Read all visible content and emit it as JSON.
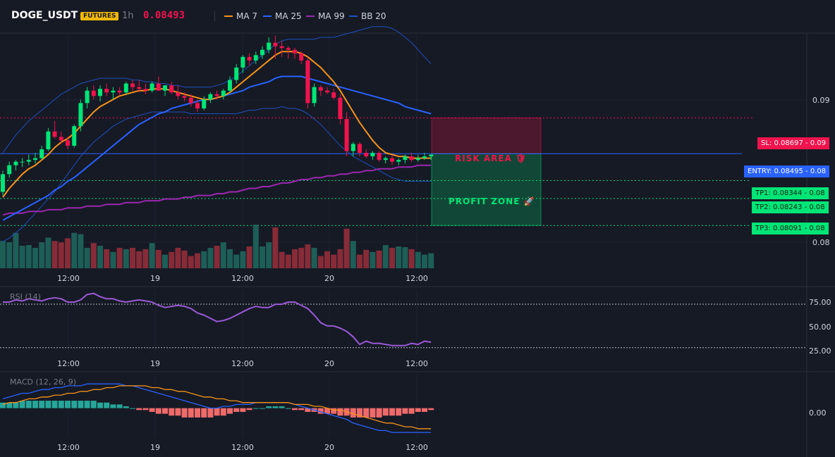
{
  "header": {
    "symbol": "DOGE_USDT",
    "badge": "FUTURES",
    "interval": "1h",
    "price": "0.08493",
    "legend": [
      {
        "label": "MA 7",
        "color": "#f7931a"
      },
      {
        "label": "MA 25",
        "color": "#2962ff"
      },
      {
        "label": "MA 99",
        "color": "#9c27b0"
      },
      {
        "label": "BB 20",
        "color": "#1e4fbf"
      }
    ]
  },
  "trade": {
    "risk_label": "RISK AREA 🛡",
    "profit_label": "PROFIT ZONE 🚀",
    "sl_tag": "SL: 0.08697 - 0.09",
    "entry_tag": "ENTRY: 0.08495 - 0.08",
    "tp1_tag": "TP1: 0.08344 - 0.08",
    "tp2_tag": "TP2: 0.08243 - 0.08",
    "tp3_tag": "TP3: 0.08091 - 0.08"
  },
  "colors": {
    "up": "#26a69a",
    "up_bright": "#00e676",
    "down": "#f0134d",
    "entry": "#2962ff"
  },
  "rsi": {
    "label": "RSI (14)",
    "ticks": [
      "75.00",
      "50.00",
      "25.00"
    ]
  },
  "macd": {
    "label": "MACD (12, 26, 9)",
    "ticks": [
      "0.00"
    ]
  },
  "chart_data": [
    {
      "type": "candlestick",
      "title": "DOGE_USDT",
      "x_ticks": [
        "12:00",
        "19",
        "12:00",
        "20",
        "12:00"
      ],
      "y_ticks": [
        "0.09",
        "0.08"
      ],
      "ylim": [
        0.0785,
        0.0917
      ],
      "levels": {
        "sl": 0.08697,
        "entry": 0.08495,
        "tp1": 0.08344,
        "tp2": 0.08243,
        "tp3": 0.08091
      },
      "ohlc": [
        [
          0.0828,
          0.084,
          0.0826,
          0.0838
        ],
        [
          0.0838,
          0.0845,
          0.0836,
          0.0843
        ],
        [
          0.0843,
          0.0846,
          0.084,
          0.0845
        ],
        [
          0.0845,
          0.0847,
          0.0842,
          0.0845
        ],
        [
          0.0845,
          0.0849,
          0.0843,
          0.0846
        ],
        [
          0.0846,
          0.085,
          0.0844,
          0.0847
        ],
        [
          0.0847,
          0.0854,
          0.0846,
          0.0852
        ],
        [
          0.0852,
          0.0864,
          0.0851,
          0.0862
        ],
        [
          0.0862,
          0.0868,
          0.0858,
          0.0859
        ],
        [
          0.0859,
          0.0862,
          0.0855,
          0.0857
        ],
        [
          0.0857,
          0.0859,
          0.0852,
          0.0854
        ],
        [
          0.0854,
          0.0866,
          0.0853,
          0.0865
        ],
        [
          0.0865,
          0.088,
          0.0862,
          0.0878
        ],
        [
          0.0878,
          0.0887,
          0.0875,
          0.0885
        ],
        [
          0.0885,
          0.0888,
          0.088,
          0.0882
        ],
        [
          0.0882,
          0.0888,
          0.0879,
          0.0886
        ],
        [
          0.0886,
          0.0889,
          0.0882,
          0.0884
        ],
        [
          0.0884,
          0.0887,
          0.088,
          0.0885
        ],
        [
          0.0885,
          0.0887,
          0.0882,
          0.0884
        ],
        [
          0.0884,
          0.089,
          0.0883,
          0.0889
        ],
        [
          0.0889,
          0.0891,
          0.0885,
          0.0887
        ],
        [
          0.0887,
          0.0891,
          0.0884,
          0.0886
        ],
        [
          0.0886,
          0.0889,
          0.0883,
          0.0885
        ],
        [
          0.0885,
          0.089,
          0.0884,
          0.0889
        ],
        [
          0.0889,
          0.0893,
          0.0885,
          0.0885
        ],
        [
          0.0885,
          0.0888,
          0.0882,
          0.0888
        ],
        [
          0.0888,
          0.089,
          0.0883,
          0.0884
        ],
        [
          0.0884,
          0.0888,
          0.088,
          0.0882
        ],
        [
          0.0882,
          0.0884,
          0.0879,
          0.0881
        ],
        [
          0.0881,
          0.0883,
          0.0876,
          0.0878
        ],
        [
          0.0878,
          0.088,
          0.0873,
          0.0875
        ],
        [
          0.0875,
          0.0882,
          0.0874,
          0.088
        ],
        [
          0.088,
          0.0884,
          0.0878,
          0.0883
        ],
        [
          0.0883,
          0.0885,
          0.088,
          0.0882
        ],
        [
          0.0882,
          0.0886,
          0.088,
          0.0885
        ],
        [
          0.0885,
          0.0893,
          0.0884,
          0.0891
        ],
        [
          0.0891,
          0.09,
          0.0889,
          0.0898
        ],
        [
          0.0898,
          0.0905,
          0.0895,
          0.0904
        ],
        [
          0.0904,
          0.0906,
          0.0899,
          0.0902
        ],
        [
          0.0902,
          0.0907,
          0.09,
          0.0905
        ],
        [
          0.0905,
          0.091,
          0.0903,
          0.0908
        ],
        [
          0.0908,
          0.0915,
          0.0906,
          0.0912
        ],
        [
          0.0912,
          0.0916,
          0.0903,
          0.091
        ],
        [
          0.091,
          0.0913,
          0.0904,
          0.0909
        ],
        [
          0.0909,
          0.091,
          0.0903,
          0.0908
        ],
        [
          0.0908,
          0.0909,
          0.0903,
          0.0906
        ],
        [
          0.0906,
          0.0907,
          0.09,
          0.0902
        ],
        [
          0.0902,
          0.0904,
          0.0875,
          0.0878
        ],
        [
          0.0878,
          0.0889,
          0.0876,
          0.0887
        ],
        [
          0.0887,
          0.0888,
          0.0882,
          0.0885
        ],
        [
          0.0885,
          0.0887,
          0.0883,
          0.0884
        ],
        [
          0.0884,
          0.0886,
          0.088,
          0.0881
        ],
        [
          0.0881,
          0.0883,
          0.0866,
          0.0869
        ],
        [
          0.0869,
          0.0873,
          0.0848,
          0.0851
        ],
        [
          0.0851,
          0.0856,
          0.0848,
          0.0855
        ],
        [
          0.0855,
          0.0856,
          0.0848,
          0.085
        ],
        [
          0.085,
          0.0852,
          0.0847,
          0.0848
        ],
        [
          0.0848,
          0.0851,
          0.0846,
          0.085
        ],
        [
          0.085,
          0.0851,
          0.0845,
          0.0846
        ],
        [
          0.0846,
          0.0848,
          0.0844,
          0.0847
        ],
        [
          0.0847,
          0.0849,
          0.0843,
          0.0845
        ],
        [
          0.0845,
          0.0847,
          0.0843,
          0.0846
        ],
        [
          0.0846,
          0.0849,
          0.0844,
          0.0848
        ],
        [
          0.0848,
          0.085,
          0.0845,
          0.0846
        ],
        [
          0.0846,
          0.0849,
          0.0845,
          0.0847
        ],
        [
          0.0847,
          0.085,
          0.0846,
          0.0848
        ],
        [
          0.0848,
          0.0849,
          0.0846,
          0.0849
        ]
      ],
      "volume": [
        40,
        38,
        52,
        33,
        34,
        30,
        38,
        45,
        40,
        38,
        44,
        52,
        50,
        30,
        37,
        33,
        28,
        24,
        30,
        28,
        30,
        25,
        28,
        37,
        27,
        20,
        24,
        30,
        26,
        18,
        22,
        25,
        30,
        33,
        38,
        28,
        20,
        25,
        32,
        64,
        32,
        38,
        60,
        24,
        20,
        28,
        30,
        35,
        30,
        18,
        25,
        20,
        28,
        58,
        40,
        20,
        27,
        24,
        26,
        34,
        30,
        32,
        31,
        28,
        24,
        20,
        22
      ],
      "ma7": [
        0.0825,
        0.083,
        0.0834,
        0.0838,
        0.0841,
        0.0843,
        0.0846,
        0.0849,
        0.0853,
        0.0856,
        0.0858,
        0.0861,
        0.0865,
        0.0869,
        0.0873,
        0.0876,
        0.0878,
        0.088,
        0.0882,
        0.0883,
        0.0884,
        0.0885,
        0.0885,
        0.0886,
        0.0886,
        0.0886,
        0.0885,
        0.0884,
        0.0883,
        0.0882,
        0.0881,
        0.088,
        0.088,
        0.0881,
        0.0882,
        0.0884,
        0.0887,
        0.089,
        0.0893,
        0.0896,
        0.0899,
        0.0902,
        0.0905,
        0.0907,
        0.0907,
        0.0907,
        0.0906,
        0.0904,
        0.0901,
        0.0898,
        0.0894,
        0.089,
        0.0885,
        0.0879,
        0.0873,
        0.0867,
        0.0862,
        0.0857,
        0.0853,
        0.085,
        0.0849,
        0.0848,
        0.0848,
        0.0847,
        0.0847,
        0.0847,
        0.0847
      ],
      "ma25": [
        0.0812,
        0.0814,
        0.0816,
        0.0818,
        0.082,
        0.0822,
        0.0824,
        0.0826,
        0.0829,
        0.0831,
        0.0834,
        0.0836,
        0.0839,
        0.0842,
        0.0845,
        0.0848,
        0.0851,
        0.0854,
        0.0857,
        0.086,
        0.0863,
        0.0866,
        0.0868,
        0.087,
        0.0872,
        0.0873,
        0.0875,
        0.0876,
        0.0877,
        0.0878,
        0.0879,
        0.088,
        0.088,
        0.0881,
        0.0882,
        0.0883,
        0.0884,
        0.0885,
        0.0887,
        0.0888,
        0.0889,
        0.089,
        0.0892,
        0.0893,
        0.0893,
        0.0893,
        0.0893,
        0.0892,
        0.0891,
        0.089,
        0.0889,
        0.0888,
        0.0887,
        0.0886,
        0.0885,
        0.0884,
        0.0883,
        0.0882,
        0.0881,
        0.088,
        0.0879,
        0.0878,
        0.0876,
        0.0875,
        0.0874,
        0.0873,
        0.0872
      ],
      "ma99": [
        0.0815,
        0.0816,
        0.0816,
        0.0816,
        0.0817,
        0.0817,
        0.0817,
        0.0818,
        0.0818,
        0.0818,
        0.0819,
        0.0819,
        0.0819,
        0.082,
        0.082,
        0.082,
        0.0821,
        0.0821,
        0.0821,
        0.0822,
        0.0822,
        0.0822,
        0.0823,
        0.0823,
        0.0823,
        0.0824,
        0.0824,
        0.0824,
        0.0825,
        0.0825,
        0.0826,
        0.0826,
        0.0826,
        0.0827,
        0.0827,
        0.0828,
        0.0828,
        0.0829,
        0.083,
        0.083,
        0.0831,
        0.0831,
        0.0832,
        0.0833,
        0.0833,
        0.0834,
        0.0835,
        0.0835,
        0.0836,
        0.0836,
        0.0837,
        0.0837,
        0.0838,
        0.0838,
        0.0839,
        0.0839,
        0.084,
        0.084,
        0.0841,
        0.0841,
        0.0841,
        0.0842,
        0.0842,
        0.0842,
        0.0843,
        0.0843,
        0.0843
      ],
      "bb_upper": [
        0.085,
        0.0855,
        0.086,
        0.0864,
        0.0868,
        0.0871,
        0.0874,
        0.0877,
        0.088,
        0.0883,
        0.0885,
        0.0887,
        0.0889,
        0.089,
        0.0891,
        0.0892,
        0.0892,
        0.0892,
        0.0892,
        0.0892,
        0.0891,
        0.0891,
        0.089,
        0.089,
        0.0889,
        0.0889,
        0.0888,
        0.0888,
        0.0887,
        0.0887,
        0.0887,
        0.0887,
        0.0887,
        0.0888,
        0.0889,
        0.0891,
        0.0893,
        0.0896,
        0.0899,
        0.0902,
        0.0905,
        0.0908,
        0.0911,
        0.0913,
        0.0914,
        0.0914,
        0.0914,
        0.0914,
        0.0914,
        0.0915,
        0.0915,
        0.0915,
        0.0916,
        0.0917,
        0.0918,
        0.0919,
        0.092,
        0.0921,
        0.0921,
        0.0921,
        0.092,
        0.0918,
        0.0915,
        0.0912,
        0.0908,
        0.0904,
        0.09
      ],
      "bb_lower": [
        0.08,
        0.0802,
        0.0805,
        0.0808,
        0.0812,
        0.0816,
        0.082,
        0.0824,
        0.0828,
        0.0833,
        0.0838,
        0.0843,
        0.0848,
        0.0852,
        0.0856,
        0.0859,
        0.0862,
        0.0865,
        0.0867,
        0.0869,
        0.087,
        0.0871,
        0.0872,
        0.0873,
        0.0873,
        0.0873,
        0.0873,
        0.0873,
        0.0873,
        0.0872,
        0.0872,
        0.0872,
        0.0872,
        0.0872,
        0.0872,
        0.0872,
        0.0872,
        0.0873,
        0.0874,
        0.0874,
        0.0875,
        0.0875,
        0.0875,
        0.0876,
        0.0875,
        0.0875,
        0.0874,
        0.0872,
        0.0869,
        0.0866,
        0.0862,
        0.0858,
        0.0854,
        0.0851,
        0.0848,
        0.0846,
        0.0844,
        0.0842,
        0.084,
        0.0838,
        0.0836,
        0.0835,
        0.0834,
        0.0834,
        0.0834,
        0.0834,
        0.0834
      ]
    },
    {
      "type": "line",
      "title": "RSI (14)",
      "x_ticks": [
        "12:00",
        "19",
        "12:00",
        "20",
        "12:00"
      ],
      "y_ticks": [
        "75.00",
        "50.00",
        "25.00"
      ],
      "ylim": [
        24,
        83
      ],
      "reference_lines": [
        70,
        30
      ],
      "values": [
        72,
        72,
        74,
        73,
        75,
        74,
        73,
        75,
        76,
        75,
        72,
        72,
        74,
        79,
        80,
        77,
        75,
        75,
        73,
        72,
        73,
        74,
        73,
        72,
        69,
        67,
        68,
        69,
        68,
        66,
        62,
        60,
        57,
        54,
        55,
        57,
        60,
        63,
        66,
        68,
        67,
        67,
        70,
        70,
        72,
        72,
        69,
        66,
        60,
        53,
        50,
        50,
        48,
        45,
        40,
        33,
        36,
        34,
        34,
        33,
        32,
        32,
        32,
        34,
        33,
        36,
        35
      ]
    },
    {
      "type": "line",
      "title": "MACD (12, 26, 9)",
      "x_ticks": [
        "12:00",
        "19",
        "12:00",
        "20",
        "12:00"
      ],
      "y_ticks": [
        "0.00"
      ],
      "ylim": [
        -0.0016,
        0.0018
      ],
      "series": [
        {
          "name": "MACD",
          "values": [
            0.0005,
            0.0006,
            0.0007,
            0.0008,
            0.0008,
            0.0009,
            0.001,
            0.001,
            0.0011,
            0.0011,
            0.0012,
            0.0012,
            0.0012,
            0.0013,
            0.0013,
            0.0013,
            0.0013,
            0.0013,
            0.0013,
            0.0012,
            0.0012,
            0.0011,
            0.001,
            0.0009,
            0.0008,
            0.0007,
            0.0006,
            0.0005,
            0.0004,
            0.0003,
            0.0002,
            0.0001,
            0.0,
            0.0,
            0.0001,
            0.0001,
            0.0002,
            0.0002,
            0.0002,
            0.0003,
            0.0003,
            0.0003,
            0.0003,
            0.0003,
            0.0003,
            0.0002,
            0.0001,
            0.0,
            -0.0001,
            -0.0002,
            -0.0003,
            -0.0004,
            -0.0005,
            -0.0006,
            -0.0008,
            -0.0009,
            -0.001,
            -0.0011,
            -0.0012,
            -0.0012,
            -0.0013,
            -0.0013,
            -0.0013,
            -0.0013,
            -0.0013,
            -0.0013,
            -0.0013
          ]
        },
        {
          "name": "Signal",
          "values": [
            0.0002,
            0.0003,
            0.0003,
            0.0004,
            0.0005,
            0.0005,
            0.0006,
            0.0006,
            0.0007,
            0.0007,
            0.0008,
            0.0008,
            0.0009,
            0.0009,
            0.001,
            0.001,
            0.0011,
            0.0011,
            0.0012,
            0.0012,
            0.0012,
            0.0012,
            0.0012,
            0.0011,
            0.0011,
            0.001,
            0.001,
            0.0009,
            0.0009,
            0.0008,
            0.0007,
            0.0006,
            0.0006,
            0.0005,
            0.0005,
            0.0004,
            0.0004,
            0.0003,
            0.0003,
            0.0003,
            0.0003,
            0.0003,
            0.0003,
            0.0003,
            0.0003,
            0.0002,
            0.0002,
            0.0002,
            0.0001,
            0.0001,
            0.0,
            -0.0001,
            -0.0001,
            -0.0002,
            -0.0003,
            -0.0004,
            -0.0005,
            -0.0006,
            -0.0007,
            -0.0008,
            -0.0008,
            -0.0009,
            -0.001,
            -0.001,
            -0.0011,
            -0.0011,
            -0.0011
          ]
        }
      ],
      "histogram": [
        0.0003,
        0.0003,
        0.0003,
        0.0004,
        0.0004,
        0.0004,
        0.0004,
        0.0004,
        0.0004,
        0.0004,
        0.0004,
        0.0004,
        0.0004,
        0.0004,
        0.0004,
        0.0003,
        0.0003,
        0.0002,
        0.0002,
        0.0001,
        0.0,
        -0.0001,
        -0.0001,
        -0.0002,
        -0.0003,
        -0.0003,
        -0.0004,
        -0.0004,
        -0.0005,
        -0.0005,
        -0.0005,
        -0.0005,
        -0.0005,
        -0.0004,
        -0.0004,
        -0.0003,
        -0.0002,
        -0.0002,
        -0.0001,
        0.0,
        0.0,
        0.0001,
        0.0001,
        0.0001,
        0.0,
        -0.0001,
        -0.0001,
        -0.0002,
        -0.0002,
        -0.0003,
        -0.0003,
        -0.0003,
        -0.0004,
        -0.0004,
        -0.0005,
        -0.0005,
        -0.0005,
        -0.0005,
        -0.0005,
        -0.0004,
        -0.0004,
        -0.0004,
        -0.0003,
        -0.0003,
        -0.0002,
        -0.0002,
        -0.0001
      ]
    }
  ]
}
